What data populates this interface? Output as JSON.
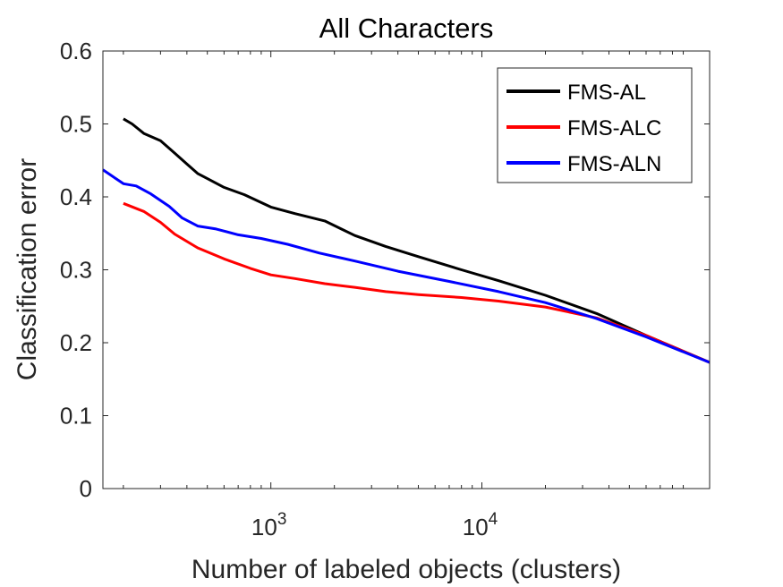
{
  "chart_data": {
    "type": "line",
    "title": "All Characters",
    "xlabel": "Number of labeled objects (clusters)",
    "ylabel": "Classification error",
    "xscale": "log",
    "xlim": [
      160,
      120000
    ],
    "ylim": [
      0,
      0.6
    ],
    "grid": false,
    "legend_position": "top-right",
    "yticks": [
      {
        "value": 0,
        "label": "0"
      },
      {
        "value": 0.1,
        "label": "0.1"
      },
      {
        "value": 0.2,
        "label": "0.2"
      },
      {
        "value": 0.3,
        "label": "0.3"
      },
      {
        "value": 0.4,
        "label": "0.4"
      },
      {
        "value": 0.5,
        "label": "0.5"
      },
      {
        "value": 0.6,
        "label": "0.6"
      }
    ],
    "xticks": [
      {
        "value": 1000,
        "base": "10",
        "exp": "3"
      },
      {
        "value": 10000,
        "base": "10",
        "exp": "4"
      }
    ],
    "series": [
      {
        "name": "FMS-AL",
        "color": "#000000",
        "x": [
          200,
          220,
          250,
          300,
          350,
          400,
          450,
          500,
          600,
          750,
          1000,
          1300,
          1800,
          2500,
          3500,
          5000,
          8000,
          12000,
          20000,
          35000,
          60000,
          120000
        ],
        "y": [
          0.507,
          0.5,
          0.487,
          0.477,
          0.46,
          0.445,
          0.432,
          0.425,
          0.413,
          0.403,
          0.386,
          0.377,
          0.367,
          0.347,
          0.332,
          0.318,
          0.3,
          0.285,
          0.265,
          0.24,
          0.21,
          0.173
        ]
      },
      {
        "name": "FMS-ALC",
        "color": "#ff0000",
        "x": [
          200,
          250,
          300,
          350,
          450,
          600,
          800,
          1000,
          1300,
          1800,
          2500,
          3500,
          5000,
          8000,
          12000,
          20000,
          35000,
          60000,
          120000
        ],
        "y": [
          0.391,
          0.38,
          0.365,
          0.349,
          0.33,
          0.315,
          0.302,
          0.293,
          0.288,
          0.281,
          0.276,
          0.27,
          0.266,
          0.262,
          0.257,
          0.249,
          0.234,
          0.21,
          0.173
        ]
      },
      {
        "name": "FMS-ALN",
        "color": "#0000ff",
        "x": [
          160,
          200,
          230,
          270,
          330,
          380,
          450,
          550,
          700,
          900,
          1200,
          1700,
          2500,
          4000,
          7000,
          12000,
          20000,
          35000,
          60000,
          120000
        ],
        "y": [
          0.437,
          0.418,
          0.415,
          0.404,
          0.387,
          0.371,
          0.36,
          0.356,
          0.348,
          0.343,
          0.335,
          0.323,
          0.312,
          0.298,
          0.284,
          0.27,
          0.255,
          0.233,
          0.208,
          0.173
        ]
      }
    ]
  }
}
